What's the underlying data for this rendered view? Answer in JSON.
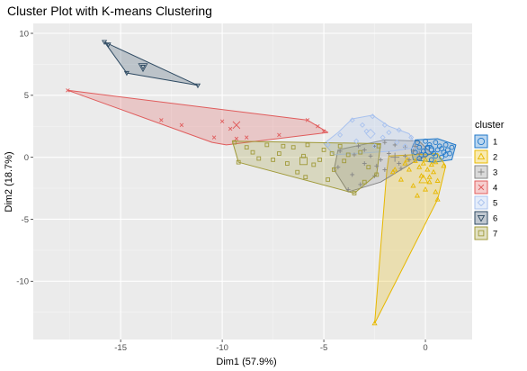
{
  "chart_data": {
    "type": "scatter",
    "title": "Cluster Plot with K-means Clustering",
    "xlabel": "Dim1 (57.9%)",
    "ylabel": "Dim2 (18.7%)",
    "xlim": [
      -19.3,
      2.3
    ],
    "ylim": [
      -14.7,
      10.8
    ],
    "x_ticks": [
      -15,
      -10,
      -5,
      0
    ],
    "y_ticks": [
      10,
      5,
      0,
      -5,
      -10
    ],
    "grid": true,
    "legend": {
      "title": "cluster",
      "position": "right"
    },
    "series": [
      {
        "name": "1",
        "color": "#1f77c9",
        "shape": "circle",
        "hull": [
          [
            -0.5,
            1.4
          ],
          [
            0.6,
            1.5
          ],
          [
            1.5,
            1.0
          ],
          [
            1.3,
            -0.2
          ],
          [
            0.4,
            -0.4
          ],
          [
            -0.6,
            -0.2
          ],
          [
            -0.7,
            0.6
          ]
        ],
        "center": [
          0.2,
          0.6
        ],
        "points": [
          [
            -0.4,
            1.2
          ],
          [
            0.0,
            1.3
          ],
          [
            0.5,
            1.2
          ],
          [
            1.0,
            1.0
          ],
          [
            1.3,
            0.8
          ],
          [
            1.2,
            0.3
          ],
          [
            0.8,
            0.0
          ],
          [
            0.3,
            -0.2
          ],
          [
            -0.3,
            -0.1
          ],
          [
            -0.5,
            0.4
          ],
          [
            0.1,
            0.8
          ],
          [
            0.6,
            0.6
          ],
          [
            0.9,
            0.4
          ],
          [
            0.4,
            0.3
          ],
          [
            -0.1,
            0.5
          ],
          [
            0.2,
            1.0
          ],
          [
            0.7,
            0.9
          ],
          [
            1.1,
            0.6
          ],
          [
            0.0,
            0.2
          ],
          [
            -0.3,
            0.8
          ],
          [
            0.5,
            0.1
          ],
          [
            1.0,
            0.2
          ],
          [
            0.3,
            0.6
          ],
          [
            0.8,
            0.7
          ],
          [
            -0.2,
            0.2
          ]
        ]
      },
      {
        "name": "2",
        "color": "#e7b800",
        "shape": "triangle",
        "hull": [
          [
            -1.8,
            0.1
          ],
          [
            0.6,
            0.3
          ],
          [
            1.0,
            -0.7
          ],
          [
            0.6,
            -3.4
          ],
          [
            -2.5,
            -13.4
          ],
          [
            -1.9,
            -1.1
          ]
        ],
        "center": [
          -0.1,
          -1.8
        ],
        "points": [
          [
            -2.5,
            -13.4
          ],
          [
            -1.5,
            -1.0
          ],
          [
            -1.0,
            -0.5
          ],
          [
            -0.5,
            -0.3
          ],
          [
            0.0,
            -0.2
          ],
          [
            0.5,
            -0.4
          ],
          [
            0.9,
            -0.7
          ],
          [
            0.4,
            -1.2
          ],
          [
            0.2,
            -2.0
          ],
          [
            0.5,
            -2.8
          ],
          [
            0.6,
            -3.4
          ],
          [
            -0.2,
            -1.5
          ],
          [
            -0.8,
            -1.0
          ],
          [
            -1.2,
            -1.8
          ],
          [
            -0.3,
            -0.8
          ],
          [
            0.1,
            -1.0
          ],
          [
            0.3,
            -0.6
          ],
          [
            -0.6,
            -2.3
          ],
          [
            0.0,
            -2.6
          ],
          [
            -0.4,
            -3.1
          ],
          [
            -1.6,
            -1.2
          ],
          [
            0.2,
            -1.6
          ],
          [
            -0.9,
            -0.2
          ],
          [
            0.6,
            -1.9
          ],
          [
            -0.1,
            -0.5
          ]
        ]
      },
      {
        "name": "3",
        "color": "#868686",
        "shape": "plus",
        "hull": [
          [
            -4.3,
            0.6
          ],
          [
            -2.0,
            1.4
          ],
          [
            -0.3,
            1.3
          ],
          [
            0.3,
            0.3
          ],
          [
            -0.6,
            -0.4
          ],
          [
            -2.2,
            -2.0
          ],
          [
            -3.8,
            -2.8
          ],
          [
            -4.5,
            -1.0
          ]
        ],
        "center": [
          -1.5,
          0.0
        ],
        "points": [
          [
            -4.2,
            0.5
          ],
          [
            -3.5,
            0.2
          ],
          [
            -3.0,
            0.6
          ],
          [
            -2.5,
            0.9
          ],
          [
            -2.0,
            1.2
          ],
          [
            -1.5,
            1.0
          ],
          [
            -1.0,
            0.8
          ],
          [
            -0.5,
            0.9
          ],
          [
            -0.3,
            0.3
          ],
          [
            -0.8,
            -0.2
          ],
          [
            -1.3,
            -0.5
          ],
          [
            -2.0,
            -1.0
          ],
          [
            -2.5,
            -1.5
          ],
          [
            -3.2,
            -2.2
          ],
          [
            -3.8,
            -2.6
          ],
          [
            -4.3,
            -0.8
          ],
          [
            -3.0,
            -0.5
          ],
          [
            -2.2,
            -0.2
          ],
          [
            -1.8,
            0.3
          ],
          [
            -1.0,
            0.1
          ],
          [
            -2.7,
            0.1
          ],
          [
            -3.6,
            -1.4
          ],
          [
            -1.2,
            -0.9
          ],
          [
            -0.6,
            0.5
          ],
          [
            -2.4,
            -0.7
          ],
          [
            -3.3,
            0.9
          ]
        ]
      },
      {
        "name": "4",
        "color": "#e05c5c",
        "shape": "x",
        "hull": [
          [
            -17.6,
            5.4
          ],
          [
            -5.8,
            3.0
          ],
          [
            -4.8,
            2.0
          ],
          [
            -9.8,
            1.0
          ],
          [
            -10.5,
            1.2
          ]
        ],
        "center": [
          -9.3,
          2.6
        ],
        "points": [
          [
            -17.6,
            5.4
          ],
          [
            -13.0,
            3.0
          ],
          [
            -12.0,
            2.6
          ],
          [
            -10.0,
            2.9
          ],
          [
            -9.6,
            2.3
          ],
          [
            -9.3,
            1.5
          ],
          [
            -8.8,
            1.6
          ],
          [
            -5.8,
            3.0
          ],
          [
            -5.3,
            2.5
          ],
          [
            -5.0,
            2.1
          ],
          [
            -7.2,
            1.8
          ],
          [
            -10.4,
            1.6
          ]
        ]
      },
      {
        "name": "5",
        "color": "#a9c2ee",
        "shape": "diamond",
        "hull": [
          [
            -5.0,
            1.1
          ],
          [
            -4.3,
            2.0
          ],
          [
            -3.6,
            3.1
          ],
          [
            -2.6,
            3.4
          ],
          [
            -1.8,
            2.5
          ],
          [
            -0.8,
            1.9
          ],
          [
            -0.4,
            0.8
          ],
          [
            -1.6,
            0.5
          ],
          [
            -3.4,
            0.3
          ],
          [
            -4.5,
            0.2
          ]
        ],
        "center": [
          -2.7,
          1.9
        ],
        "points": [
          [
            -4.8,
            1.0
          ],
          [
            -4.2,
            1.8
          ],
          [
            -3.6,
            3.0
          ],
          [
            -2.6,
            3.3
          ],
          [
            -2.0,
            2.6
          ],
          [
            -1.3,
            2.2
          ],
          [
            -0.7,
            1.6
          ],
          [
            -1.4,
            1.2
          ],
          [
            -2.1,
            1.6
          ],
          [
            -2.9,
            2.1
          ],
          [
            -3.4,
            1.3
          ],
          [
            -2.5,
            0.9
          ],
          [
            -1.8,
            2.0
          ],
          [
            -3.1,
            2.6
          ],
          [
            -1.0,
            0.9
          ]
        ]
      },
      {
        "name": "6",
        "color": "#2e4a62",
        "shape": "triangle-down",
        "hull": [
          [
            -15.8,
            9.3
          ],
          [
            -11.2,
            5.8
          ],
          [
            -14.7,
            6.8
          ]
        ],
        "center": [
          -13.9,
          7.3
        ],
        "points": [
          [
            -15.8,
            9.3
          ],
          [
            -15.6,
            9.1
          ],
          [
            -14.7,
            6.8
          ],
          [
            -11.2,
            5.8
          ],
          [
            -13.9,
            7.3
          ]
        ]
      },
      {
        "name": "7",
        "color": "#a09a3a",
        "shape": "square",
        "hull": [
          [
            -9.5,
            1.3
          ],
          [
            -2.2,
            1.1
          ],
          [
            -2.4,
            -1.4
          ],
          [
            -3.5,
            -2.9
          ],
          [
            -9.2,
            -0.4
          ]
        ],
        "center": [
          -6.0,
          -0.3
        ],
        "points": [
          [
            -9.4,
            1.2
          ],
          [
            -9.2,
            -0.4
          ],
          [
            -8.5,
            0.4
          ],
          [
            -7.8,
            1.0
          ],
          [
            -7.2,
            0.3
          ],
          [
            -6.5,
            0.8
          ],
          [
            -6.0,
            0.1
          ],
          [
            -5.5,
            -0.6
          ],
          [
            -5.0,
            0.6
          ],
          [
            -4.5,
            -1.0
          ],
          [
            -4.0,
            -0.3
          ],
          [
            -3.5,
            -2.9
          ],
          [
            -3.2,
            0.4
          ],
          [
            -2.8,
            -0.8
          ],
          [
            -2.4,
            -1.4
          ],
          [
            -2.3,
            0.9
          ],
          [
            -6.8,
            -0.5
          ],
          [
            -7.5,
            -0.2
          ],
          [
            -8.2,
            -0.1
          ],
          [
            -5.8,
            1.0
          ],
          [
            -4.8,
            -1.8
          ],
          [
            -4.2,
            0.9
          ],
          [
            -3.0,
            -2.0
          ],
          [
            -6.3,
            -1.2
          ],
          [
            -5.2,
            -0.2
          ],
          [
            -7.0,
            0.9
          ],
          [
            -3.8,
            0.2
          ],
          [
            -8.8,
            0.8
          ],
          [
            -4.6,
            0.3
          ],
          [
            -5.9,
            -1.6
          ]
        ]
      }
    ]
  }
}
